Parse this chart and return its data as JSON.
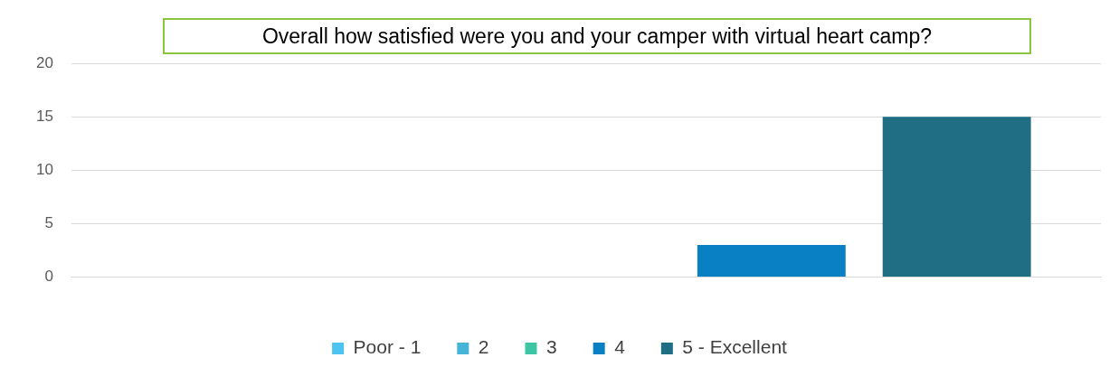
{
  "chart_data": {
    "type": "bar",
    "title": "Overall how satisfied were you and your camper with virtual heart camp?",
    "categories": [
      null
    ],
    "series": [
      {
        "name": "Poor - 1",
        "color": "#4cc3f0",
        "values": [
          0
        ]
      },
      {
        "name": "2",
        "color": "#45b4d6",
        "values": [
          0
        ]
      },
      {
        "name": "3",
        "color": "#3ec6a4",
        "values": [
          0
        ]
      },
      {
        "name": "4",
        "color": "#0a80c4",
        "values": [
          3
        ]
      },
      {
        "name": "5 - Excellent",
        "color": "#1f6e84",
        "values": [
          15
        ]
      }
    ],
    "ylim": [
      0,
      20
    ],
    "yticks": [
      0,
      5,
      10,
      15,
      20
    ],
    "grid": "y",
    "legend": "bottom"
  }
}
